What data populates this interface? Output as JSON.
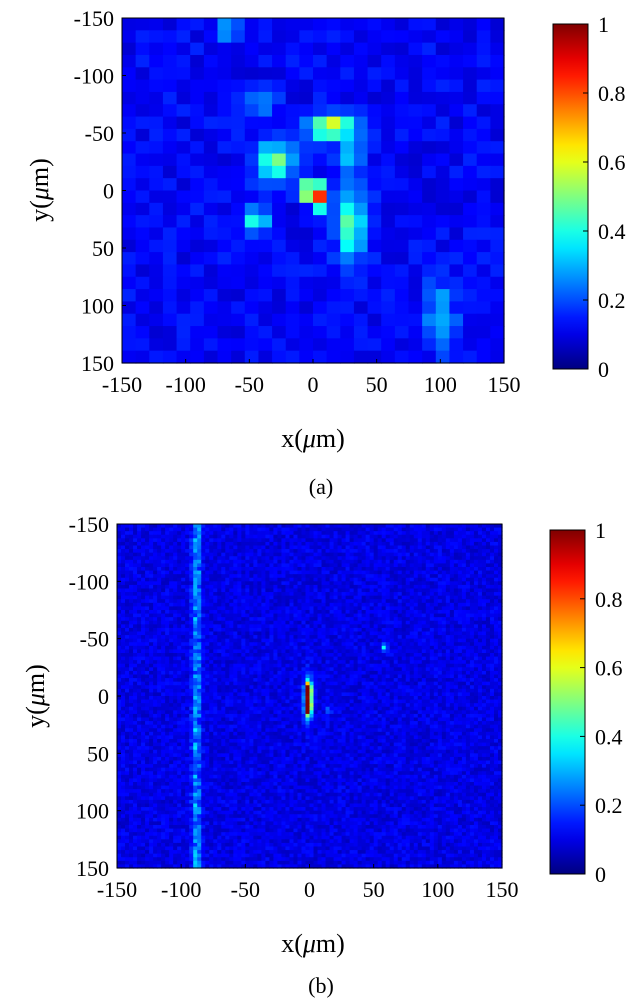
{
  "chart_data": [
    {
      "type": "heatmap",
      "panel_label": "(a)",
      "xlabel_pre": "x(",
      "ylabel_pre": "y(",
      "unit_mu": "μ",
      "unit_rest": "m)",
      "xlim": [
        -150,
        150
      ],
      "ylim": [
        -150,
        150
      ],
      "y_direction": "top-to-bottom",
      "x_ticks": [
        "-150",
        "-100",
        "-50",
        "0",
        "50",
        "100",
        "150"
      ],
      "y_ticks": [
        "-150",
        "-100",
        "-50",
        "0",
        "50",
        "100",
        "150"
      ],
      "grid_cells": 28,
      "colorbar": {
        "range": [
          0,
          1
        ],
        "ticks": [
          "0",
          "0.2",
          "0.4",
          "0.6",
          "0.8",
          "1"
        ],
        "colormap": "jet"
      },
      "background_level": 0.12,
      "features": [
        {
          "x": 0,
          "y": 0,
          "value": 1.0,
          "sx": 5,
          "sy": 5
        },
        {
          "x": 5,
          "y": 10,
          "value": 0.55,
          "sx": 5,
          "sy": 5
        },
        {
          "x": 15,
          "y": -55,
          "value": 0.55,
          "sx": 12,
          "sy": 7
        },
        {
          "x": -30,
          "y": -25,
          "value": 0.38,
          "sx": 10,
          "sy": 12
        },
        {
          "x": 30,
          "y": 30,
          "value": 0.35,
          "sx": 8,
          "sy": 22
        },
        {
          "x": -45,
          "y": 25,
          "value": 0.28,
          "sx": 7,
          "sy": 7
        },
        {
          "x": -40,
          "y": -75,
          "value": 0.2,
          "sx": 8,
          "sy": 8
        },
        {
          "x": 30,
          "y": -30,
          "value": 0.26,
          "sx": 6,
          "sy": 8
        },
        {
          "x": 100,
          "y": 110,
          "value": 0.2,
          "sx": 8,
          "sy": 20
        },
        {
          "x": -65,
          "y": -140,
          "value": 0.18,
          "sx": 8,
          "sy": 8
        }
      ]
    },
    {
      "type": "heatmap",
      "panel_label": "(b)",
      "xlabel_pre": "x(",
      "ylabel_pre": "y(",
      "unit_mu": "μ",
      "unit_rest": "m)",
      "xlim": [
        -150,
        150
      ],
      "ylim": [
        -150,
        150
      ],
      "y_direction": "top-to-bottom",
      "x_ticks": [
        "-150",
        "-100",
        "-50",
        "0",
        "50",
        "100",
        "150"
      ],
      "y_ticks": [
        "-150",
        "-100",
        "-50",
        "0",
        "50",
        "100",
        "150"
      ],
      "grid_cells": 96,
      "colorbar": {
        "range": [
          0,
          1
        ],
        "ticks": [
          "0",
          "0.2",
          "0.4",
          "0.6",
          "0.8",
          "1"
        ],
        "colormap": "jet"
      },
      "background_level": 0.1,
      "features": [
        {
          "x": -1,
          "y": -5,
          "value": 0.95,
          "sx": 1.5,
          "sy": 4
        },
        {
          "x": -1,
          "y": 10,
          "value": 0.95,
          "sx": 1.5,
          "sy": 4
        },
        {
          "x": -1,
          "y": 2,
          "value": 0.6,
          "sx": 2,
          "sy": 12
        },
        {
          "x": 58,
          "y": -42,
          "value": 0.3,
          "sx": 1.5,
          "sy": 2
        },
        {
          "x": 15,
          "y": 12,
          "value": 0.22,
          "sx": 1.5,
          "sy": 1.5
        }
      ],
      "streak": {
        "x": -88,
        "value": 0.2
      }
    }
  ]
}
